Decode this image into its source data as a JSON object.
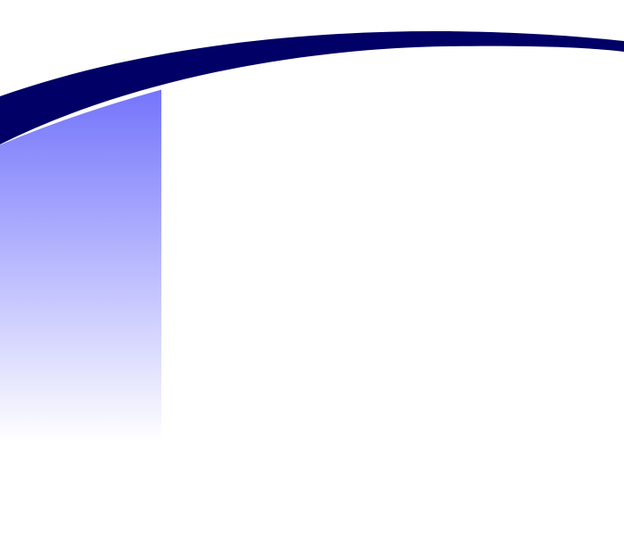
{
  "colors": {
    "background": "#ffffff",
    "swoosh": "#000066",
    "sidebar_gradient_top": "#7474fc",
    "sidebar_gradient_bottom": "#ffffff"
  }
}
